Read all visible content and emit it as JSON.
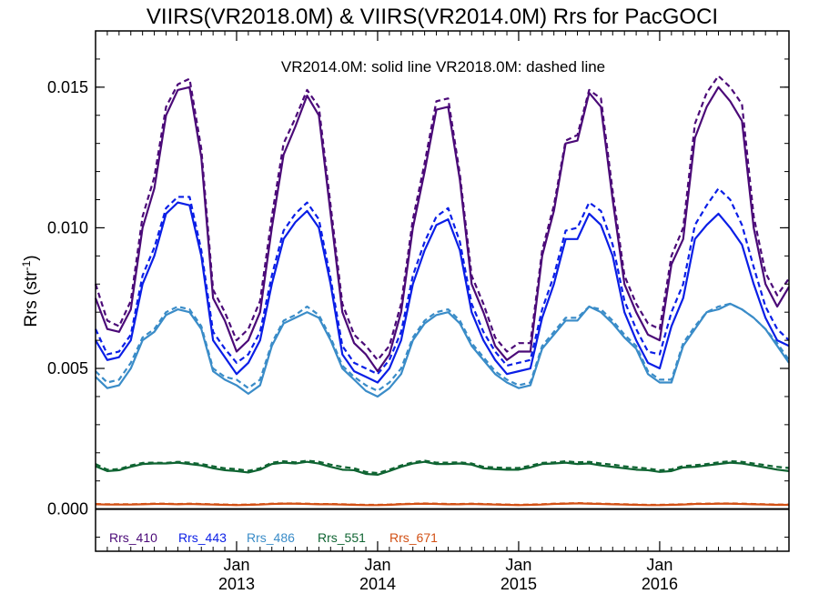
{
  "chart_data": {
    "type": "line",
    "title": "VIIRS(VR2018.0M) & VIIRS(VR2014.0M)  Rrs for PacGOCI",
    "annotation": "VR2014.0M: solid line   VR2018.0M: dashed line",
    "ylabel": "Rrs (str",
    "ylabel_sup": "-1",
    "ylabel_close": ")",
    "xlim": [
      "2012-01",
      "2016-12"
    ],
    "ylim": [
      -0.0015,
      0.017
    ],
    "yticks": [
      {
        "value": 0.0,
        "label": "0.000"
      },
      {
        "value": 0.005,
        "label": "0.005"
      },
      {
        "value": 0.01,
        "label": "0.010"
      },
      {
        "value": 0.015,
        "label": "0.015"
      }
    ],
    "xticks": [
      {
        "date": "2013-01",
        "line1": "Jan",
        "line2": "2013"
      },
      {
        "date": "2014-01",
        "line1": "Jan",
        "line2": "2014"
      },
      {
        "date": "2015-01",
        "line1": "Jan",
        "line2": "2015"
      },
      {
        "date": "2016-01",
        "line1": "Jan",
        "line2": "2016"
      }
    ],
    "legend_placement": "bottom-left",
    "line_styles": {
      "VR2014.0M": "solid",
      "VR2018.0M": "dashed"
    },
    "x": [
      "2012-01",
      "2012-02",
      "2012-03",
      "2012-04",
      "2012-05",
      "2012-06",
      "2012-07",
      "2012-08",
      "2012-09",
      "2012-10",
      "2012-11",
      "2012-12",
      "2013-01",
      "2013-02",
      "2013-03",
      "2013-04",
      "2013-05",
      "2013-06",
      "2013-07",
      "2013-08",
      "2013-09",
      "2013-10",
      "2013-11",
      "2013-12",
      "2014-01",
      "2014-02",
      "2014-03",
      "2014-04",
      "2014-05",
      "2014-06",
      "2014-07",
      "2014-08",
      "2014-09",
      "2014-10",
      "2014-11",
      "2014-12",
      "2015-01",
      "2015-02",
      "2015-03",
      "2015-04",
      "2015-05",
      "2015-06",
      "2015-07",
      "2015-08",
      "2015-09",
      "2015-10",
      "2015-11",
      "2015-12",
      "2016-01",
      "2016-02",
      "2016-03",
      "2016-04",
      "2016-05",
      "2016-06",
      "2016-07",
      "2016-08",
      "2016-09",
      "2016-10",
      "2016-11",
      "2016-12"
    ],
    "series": [
      {
        "name": "Rrs_410",
        "color": "#4b0a78",
        "style": "solid",
        "values": [
          0.0075,
          0.0064,
          0.0063,
          0.0071,
          0.01,
          0.0114,
          0.014,
          0.0149,
          0.015,
          0.0125,
          0.0075,
          0.0067,
          0.0056,
          0.006,
          0.007,
          0.01,
          0.0126,
          0.0136,
          0.0147,
          0.014,
          0.0105,
          0.007,
          0.0059,
          0.0055,
          0.0049,
          0.0055,
          0.007,
          0.01,
          0.012,
          0.0142,
          0.0143,
          0.0117,
          0.008,
          0.007,
          0.0058,
          0.0053,
          0.0056,
          0.0056,
          0.009,
          0.0106,
          0.013,
          0.0131,
          0.0148,
          0.0143,
          0.011,
          0.008,
          0.007,
          0.0062,
          0.006,
          0.0087,
          0.0096,
          0.0132,
          0.0143,
          0.015,
          0.0145,
          0.0138,
          0.01,
          0.008,
          0.0072,
          0.0079
        ]
      },
      {
        "name": "Rrs_443",
        "color": "#0a1ee6",
        "style": "solid",
        "values": [
          0.006,
          0.0053,
          0.0054,
          0.006,
          0.008,
          0.009,
          0.0105,
          0.0109,
          0.0108,
          0.009,
          0.006,
          0.0054,
          0.0048,
          0.0052,
          0.006,
          0.008,
          0.0096,
          0.0102,
          0.0106,
          0.01,
          0.008,
          0.0055,
          0.0049,
          0.0047,
          0.0045,
          0.005,
          0.006,
          0.008,
          0.0092,
          0.0101,
          0.0103,
          0.0092,
          0.007,
          0.006,
          0.0053,
          0.0048,
          0.0049,
          0.005,
          0.0068,
          0.008,
          0.0096,
          0.0096,
          0.0105,
          0.0101,
          0.009,
          0.007,
          0.006,
          0.0052,
          0.005,
          0.0065,
          0.0075,
          0.0096,
          0.0101,
          0.0105,
          0.01,
          0.0094,
          0.008,
          0.0068,
          0.006,
          0.0058
        ]
      },
      {
        "name": "Rrs_486",
        "color": "#3a8cc8",
        "style": "solid",
        "values": [
          0.0047,
          0.0043,
          0.0044,
          0.005,
          0.006,
          0.0063,
          0.0069,
          0.0071,
          0.007,
          0.0064,
          0.0049,
          0.0046,
          0.0044,
          0.0041,
          0.0044,
          0.0058,
          0.0066,
          0.0068,
          0.007,
          0.0068,
          0.006,
          0.005,
          0.0046,
          0.0042,
          0.004,
          0.0043,
          0.0048,
          0.006,
          0.0066,
          0.0069,
          0.007,
          0.0066,
          0.0058,
          0.0053,
          0.0048,
          0.0045,
          0.0043,
          0.0044,
          0.0057,
          0.0062,
          0.0067,
          0.0067,
          0.0072,
          0.007,
          0.0066,
          0.0061,
          0.0057,
          0.0048,
          0.0045,
          0.0045,
          0.0058,
          0.0064,
          0.007,
          0.0071,
          0.0073,
          0.0071,
          0.0068,
          0.0064,
          0.0058,
          0.0052
        ]
      },
      {
        "name": "Rrs_551",
        "color": "#0f6432",
        "style": "solid",
        "values": [
          0.00152,
          0.00135,
          0.00138,
          0.0015,
          0.0016,
          0.00162,
          0.00162,
          0.00165,
          0.0016,
          0.00155,
          0.00145,
          0.00138,
          0.00135,
          0.0013,
          0.0014,
          0.0016,
          0.00165,
          0.00162,
          0.00168,
          0.00162,
          0.0015,
          0.0014,
          0.00138,
          0.00125,
          0.00122,
          0.00135,
          0.0015,
          0.00162,
          0.00168,
          0.0016,
          0.0016,
          0.00162,
          0.00158,
          0.00145,
          0.00142,
          0.0014,
          0.0014,
          0.00148,
          0.0016,
          0.00162,
          0.00165,
          0.0016,
          0.00162,
          0.00155,
          0.0015,
          0.00145,
          0.0014,
          0.00138,
          0.00132,
          0.00135,
          0.00148,
          0.0015,
          0.00155,
          0.0016,
          0.00165,
          0.00162,
          0.00155,
          0.00148,
          0.0014,
          0.00135
        ]
      },
      {
        "name": "Rrs_671",
        "color": "#d25014",
        "style": "solid",
        "values": [
          0.00017,
          0.00016,
          0.00016,
          0.00016,
          0.00017,
          0.00018,
          0.00018,
          0.00017,
          0.00018,
          0.00017,
          0.00016,
          0.00015,
          0.00014,
          0.00015,
          0.00016,
          0.00018,
          0.00019,
          0.00019,
          0.00018,
          0.00017,
          0.00017,
          0.00016,
          0.00015,
          0.00014,
          0.00014,
          0.00015,
          0.00017,
          0.00018,
          0.00019,
          0.00018,
          0.00017,
          0.00017,
          0.00018,
          0.00017,
          0.00016,
          0.00015,
          0.00014,
          0.00015,
          0.00016,
          0.00018,
          0.00019,
          0.0002,
          0.00019,
          0.00018,
          0.00017,
          0.00016,
          0.00015,
          0.00014,
          0.00014,
          0.00015,
          0.00016,
          0.00018,
          0.00018,
          0.00019,
          0.00019,
          0.00018,
          0.00017,
          0.00016,
          0.00015,
          0.00015
        ]
      },
      {
        "name": "Rrs_410",
        "color": "#4b0a78",
        "style": "dashed",
        "values": [
          0.008,
          0.0067,
          0.0065,
          0.0074,
          0.0104,
          0.0118,
          0.0143,
          0.0151,
          0.0153,
          0.0128,
          0.0078,
          0.007,
          0.006,
          0.0064,
          0.0074,
          0.0104,
          0.013,
          0.0139,
          0.0149,
          0.0143,
          0.0108,
          0.0073,
          0.0062,
          0.0058,
          0.0053,
          0.0058,
          0.0073,
          0.0103,
          0.0123,
          0.0145,
          0.0146,
          0.0119,
          0.0083,
          0.0073,
          0.0061,
          0.0056,
          0.0059,
          0.0059,
          0.0092,
          0.0108,
          0.0131,
          0.0133,
          0.0149,
          0.0146,
          0.0113,
          0.0083,
          0.0073,
          0.0066,
          0.0064,
          0.009,
          0.01,
          0.0137,
          0.0148,
          0.0154,
          0.015,
          0.0144,
          0.0104,
          0.0084,
          0.0076,
          0.0082
        ]
      },
      {
        "name": "Rrs_443",
        "color": "#0a1ee6",
        "style": "dashed",
        "values": [
          0.0064,
          0.0055,
          0.0056,
          0.0062,
          0.0083,
          0.0093,
          0.0107,
          0.0111,
          0.0111,
          0.0092,
          0.0063,
          0.0057,
          0.0052,
          0.0055,
          0.0063,
          0.0083,
          0.0099,
          0.0105,
          0.0109,
          0.0103,
          0.0082,
          0.0058,
          0.0052,
          0.005,
          0.0048,
          0.0053,
          0.0063,
          0.0083,
          0.0095,
          0.0104,
          0.0107,
          0.0095,
          0.0073,
          0.0063,
          0.0056,
          0.0051,
          0.0052,
          0.0053,
          0.0071,
          0.0083,
          0.0099,
          0.01,
          0.0109,
          0.0106,
          0.0094,
          0.0074,
          0.0064,
          0.0056,
          0.0055,
          0.007,
          0.008,
          0.0101,
          0.0108,
          0.0114,
          0.011,
          0.0101,
          0.0086,
          0.0072,
          0.0064,
          0.006
        ]
      },
      {
        "name": "Rrs_486",
        "color": "#3a8cc8",
        "style": "dashed",
        "values": [
          0.0049,
          0.0045,
          0.0046,
          0.0052,
          0.0061,
          0.0064,
          0.007,
          0.0072,
          0.0071,
          0.0065,
          0.005,
          0.0047,
          0.0046,
          0.0043,
          0.0046,
          0.0059,
          0.0067,
          0.0069,
          0.0072,
          0.0069,
          0.0061,
          0.0051,
          0.0047,
          0.0044,
          0.0042,
          0.0045,
          0.005,
          0.0061,
          0.0067,
          0.007,
          0.0071,
          0.0067,
          0.0059,
          0.0054,
          0.0049,
          0.0046,
          0.0044,
          0.0045,
          0.0058,
          0.0063,
          0.0068,
          0.0068,
          0.0072,
          0.0071,
          0.0067,
          0.0062,
          0.0058,
          0.0049,
          0.0046,
          0.0046,
          0.0059,
          0.0065,
          0.007,
          0.0072,
          0.0073,
          0.0071,
          0.0068,
          0.0064,
          0.0059,
          0.0053
        ]
      },
      {
        "name": "Rrs_551",
        "color": "#0f6432",
        "style": "dashed",
        "values": [
          0.0016,
          0.0014,
          0.00142,
          0.00155,
          0.00164,
          0.00165,
          0.00164,
          0.00168,
          0.00165,
          0.0016,
          0.00152,
          0.00145,
          0.00142,
          0.00136,
          0.00145,
          0.00165,
          0.0017,
          0.00166,
          0.00172,
          0.00168,
          0.00158,
          0.0015,
          0.00145,
          0.00132,
          0.00128,
          0.0014,
          0.00155,
          0.00166,
          0.00172,
          0.00165,
          0.00165,
          0.00166,
          0.00162,
          0.0015,
          0.00148,
          0.00146,
          0.00146,
          0.00154,
          0.00164,
          0.00166,
          0.0017,
          0.00166,
          0.00168,
          0.00162,
          0.00158,
          0.00152,
          0.00148,
          0.00144,
          0.00138,
          0.00141,
          0.00153,
          0.00156,
          0.0016,
          0.00166,
          0.0017,
          0.00168,
          0.00162,
          0.00156,
          0.0015,
          0.00146
        ]
      },
      {
        "name": "Rrs_671",
        "color": "#d25014",
        "style": "dashed",
        "values": [
          0.00018,
          0.00017,
          0.00017,
          0.00017,
          0.00018,
          0.00019,
          0.00019,
          0.00018,
          0.00019,
          0.00018,
          0.00017,
          0.00016,
          0.00015,
          0.00016,
          0.00017,
          0.00019,
          0.0002,
          0.0002,
          0.00019,
          0.00018,
          0.00018,
          0.00017,
          0.00016,
          0.00015,
          0.00015,
          0.00016,
          0.00018,
          0.00019,
          0.0002,
          0.00019,
          0.00018,
          0.00018,
          0.00019,
          0.00018,
          0.00017,
          0.00016,
          0.00015,
          0.00016,
          0.00017,
          0.00019,
          0.0002,
          0.00021,
          0.0002,
          0.00019,
          0.00018,
          0.00017,
          0.00016,
          0.00015,
          0.00015,
          0.00016,
          0.00017,
          0.00019,
          0.00019,
          0.0002,
          0.0002,
          0.00019,
          0.00018,
          0.00017,
          0.00016,
          0.00016
        ]
      }
    ]
  }
}
